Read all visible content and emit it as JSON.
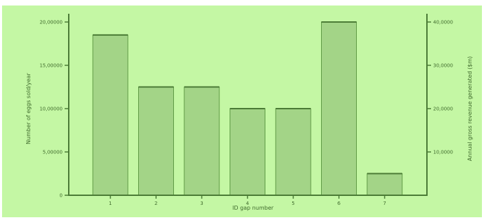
{
  "colors": {
    "panel_background": "#c4f7a4",
    "bar_fill": "#a3d487",
    "bar_edge": "#5f9a45",
    "axis": "#4a7a35",
    "text": "#3f6a2c"
  },
  "chart_data": {
    "type": "bar",
    "title": "",
    "xlabel": "ID gap number",
    "ylabel": "Number of eggs sold/year",
    "ylabel_right": "Annual gross revenue generated ($m)",
    "categories": [
      "1",
      "2",
      "3",
      "4",
      "5",
      "6",
      "7"
    ],
    "values": [
      18500,
      12500,
      12500,
      10000,
      10000,
      20000,
      2500
    ],
    "ylim": [
      0,
      20000
    ],
    "yticks": [
      {
        "value": 0,
        "label": "0"
      },
      {
        "value": 5000,
        "label": "5,00000"
      },
      {
        "value": 10000,
        "label": "10,00000"
      },
      {
        "value": 15000,
        "label": "15,00000"
      },
      {
        "value": 20000,
        "label": "20,00000"
      }
    ],
    "yticks_right": [
      {
        "value": 5000,
        "label": "10,0000"
      },
      {
        "value": 10000,
        "label": "20,0000"
      },
      {
        "value": 15000,
        "label": "30,0000"
      },
      {
        "value": 20000,
        "label": "40,0000"
      }
    ],
    "grid": false,
    "legend": "none"
  }
}
